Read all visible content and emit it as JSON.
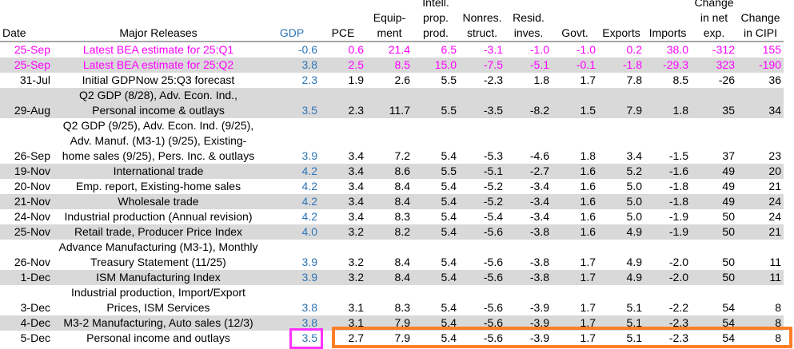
{
  "headers": [
    "Date",
    "Major Releases",
    "GDP",
    "PCE",
    "Equip-\nment",
    "Intell.\nprop.\nprod.",
    "Nonres.\nstruct.",
    "Resid.\ninves.",
    "Govt.",
    "Exports",
    "Imports",
    "Change\nin net\nexp.",
    "Change\nin CIPI"
  ],
  "rows": [
    {
      "style": "pink",
      "date": "25-Sep",
      "release": "Latest BEA estimate for 25:Q1",
      "values": [
        "-0.6",
        "0.6",
        "21.4",
        "6.5",
        "-3.1",
        "-1.0",
        "-1.0",
        "0.2",
        "38.0",
        "-312",
        "155"
      ]
    },
    {
      "style": "pink gray",
      "date": "25-Sep",
      "release": "Latest BEA estimate for 25:Q2",
      "values": [
        "3.8",
        "2.5",
        "8.5",
        "15.0",
        "-7.5",
        "-5.1",
        "-0.1",
        "-1.8",
        "-29.3",
        "323",
        "-190"
      ]
    },
    {
      "style": "",
      "date": "31-Jul",
      "release": "Initial GDPNow 25:Q3 forecast",
      "values": [
        "2.3",
        "1.9",
        "2.6",
        "5.5",
        "-2.3",
        "1.8",
        "1.7",
        "7.8",
        "8.5",
        "-26",
        "36"
      ]
    },
    {
      "style": "gray",
      "date": "29-Aug",
      "release": "Q2 GDP (8/28), Adv. Econ. Ind.,\nPersonal income & outlays",
      "values": [
        "3.5",
        "2.3",
        "11.7",
        "5.5",
        "-3.5",
        "-8.2",
        "1.5",
        "7.9",
        "1.8",
        "35",
        "34"
      ]
    },
    {
      "style": "",
      "date": "26-Sep",
      "release": "Q2 GDP (9/25), Adv. Econ. Ind. (9/25),\nAdv. Manuf. (M3-1) (9/25), Existing-\nhome sales (9/25), Pers. Inc. & outlays",
      "values": [
        "3.9",
        "3.4",
        "7.2",
        "5.4",
        "-5.3",
        "-4.6",
        "1.8",
        "3.4",
        "-1.5",
        "37",
        "23"
      ]
    },
    {
      "style": "gray",
      "date": "19-Nov",
      "release": "International trade",
      "values": [
        "4.2",
        "3.4",
        "8.6",
        "5.5",
        "-5.1",
        "-2.7",
        "1.6",
        "5.2",
        "-1.6",
        "49",
        "20"
      ]
    },
    {
      "style": "",
      "date": "20-Nov",
      "release": "Emp. report, Existing-home sales",
      "values": [
        "4.2",
        "3.4",
        "8.4",
        "5.4",
        "-5.2",
        "-3.4",
        "1.6",
        "5.0",
        "-1.8",
        "49",
        "21"
      ]
    },
    {
      "style": "gray",
      "date": "21-Nov",
      "release": "Wholesale trade",
      "values": [
        "4.2",
        "3.4",
        "8.4",
        "5.4",
        "-5.2",
        "-3.4",
        "1.6",
        "5.0",
        "-1.8",
        "49",
        "24"
      ]
    },
    {
      "style": "",
      "date": "24-Nov",
      "release": "Industrial production (Annual revision)",
      "values": [
        "4.2",
        "3.4",
        "8.3",
        "5.4",
        "-5.4",
        "-3.4",
        "1.6",
        "5.0",
        "-1.9",
        "50",
        "24"
      ]
    },
    {
      "style": "gray",
      "date": "25-Nov",
      "release": "Retail trade, Producer Price Index",
      "values": [
        "4.0",
        "3.2",
        "8.2",
        "5.4",
        "-5.6",
        "-3.8",
        "1.6",
        "4.9",
        "-1.9",
        "50",
        "21"
      ]
    },
    {
      "style": "",
      "date": "26-Nov",
      "release": "Advance Manufacturing (M3-1), Monthly\nTreasury Statement (11/25)",
      "values": [
        "3.9",
        "3.2",
        "8.4",
        "5.4",
        "-5.6",
        "-3.8",
        "1.7",
        "4.9",
        "-2.0",
        "50",
        "11"
      ]
    },
    {
      "style": "gray",
      "date": "1-Dec",
      "release": "ISM Manufacturing Index",
      "values": [
        "3.9",
        "3.2",
        "8.4",
        "5.4",
        "-5.6",
        "-3.8",
        "1.7",
        "4.9",
        "-2.0",
        "50",
        "11"
      ]
    },
    {
      "style": "",
      "date": "3-Dec",
      "release": "Industrial production, Import/Export\nPrices, ISM Services",
      "values": [
        "3.8",
        "3.1",
        "8.3",
        "5.4",
        "-5.6",
        "-3.9",
        "1.7",
        "5.1",
        "-2.2",
        "54",
        "8"
      ]
    },
    {
      "style": "gray",
      "date": "4-Dec",
      "release": "M3-2 Manufacturing, Auto sales (12/3)",
      "values": [
        "3.8",
        "3.1",
        "7.9",
        "5.4",
        "-5.6",
        "-3.9",
        "1.7",
        "5.1",
        "-2.3",
        "54",
        "8"
      ]
    },
    {
      "style": "",
      "date": "5-Dec",
      "release": "Personal income and outlays",
      "values": [
        "3.5",
        "2.7",
        "7.9",
        "5.4",
        "-5.6",
        "-3.9",
        "1.7",
        "5.1",
        "-2.3",
        "54",
        "8"
      ]
    }
  ],
  "colors": {
    "pink": "#ff00ff",
    "gdp_blue": "#2e75b6",
    "gray_row": "#d9d9d9",
    "highlight_gdp": "#ff33ff",
    "highlight_rest": "#ff7f27"
  }
}
